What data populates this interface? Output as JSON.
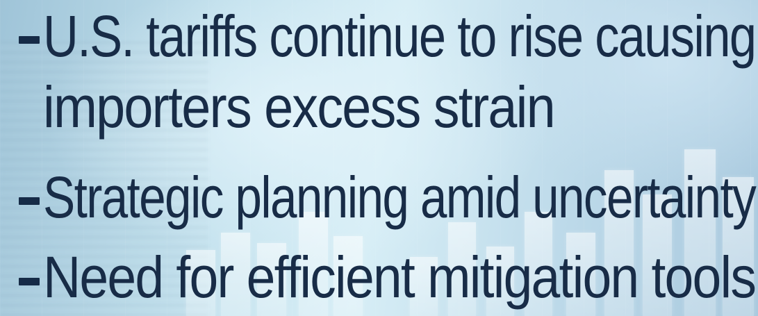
{
  "slide": {
    "bullets": [
      {
        "lines": [
          "U.S. tariffs continue to rise causing",
          "importers excess strain"
        ]
      },
      {
        "lines": [
          "Strategic planning amid uncertainty"
        ]
      },
      {
        "lines": [
          "Need for efficient mitigation tools"
        ]
      }
    ]
  },
  "colors": {
    "text": "#182c47",
    "bullet": "#162b47",
    "background_light": "#d7eef6",
    "background_mid": "#a9c9de"
  }
}
